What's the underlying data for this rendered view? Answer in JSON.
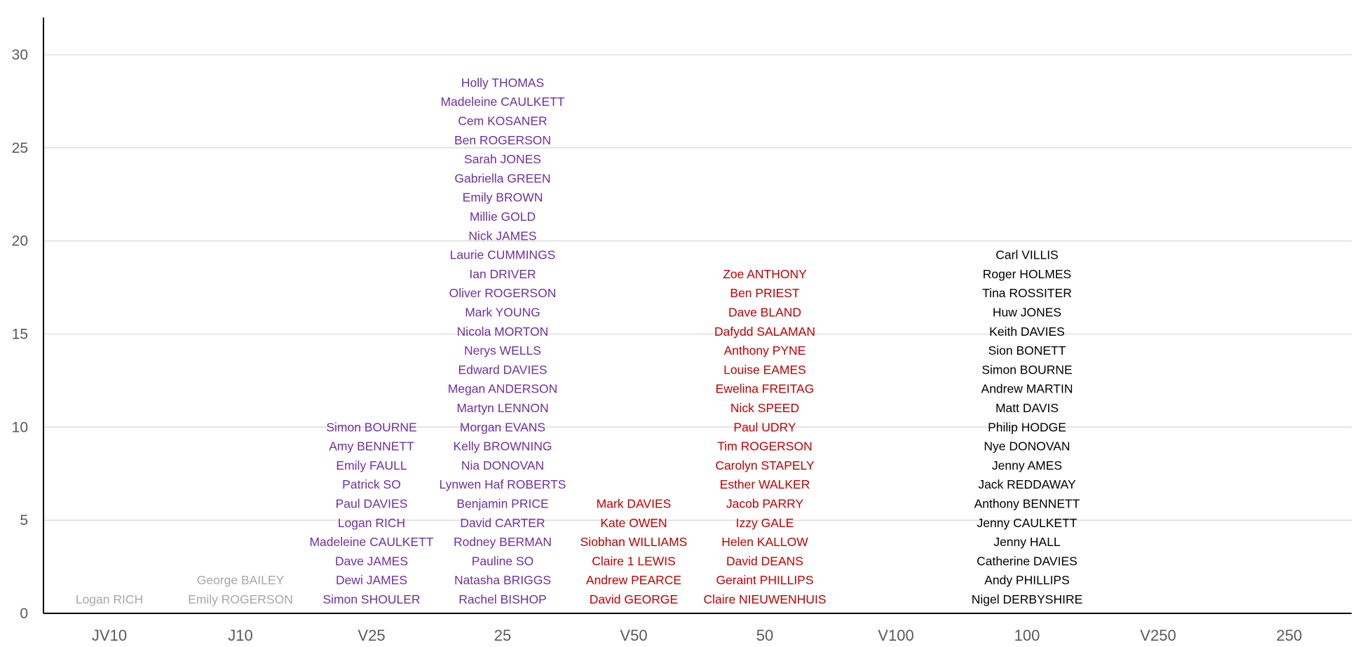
{
  "chart_data": {
    "type": "scatter",
    "title": "",
    "xlabel": "",
    "ylabel": "",
    "ylim": [
      0,
      32
    ],
    "yticks": [
      0,
      5,
      10,
      15,
      20,
      25,
      30
    ],
    "grid": true,
    "legend": "none",
    "categories": [
      "JV10",
      "J10",
      "V25",
      "25",
      "V50",
      "50",
      "V100",
      "100",
      "V250",
      "250"
    ],
    "colors": {
      "grey": "#a6a6a6",
      "purple": "#7030a0",
      "red": "#c00000",
      "black": "#000000",
      "axis": "#000000",
      "grid": "#d9d9d9",
      "tick": "#595959"
    },
    "series": [
      {
        "category": "JV10",
        "color": "grey",
        "names": [
          "Logan RICH"
        ]
      },
      {
        "category": "J10",
        "color": "grey",
        "names": [
          "Emily ROGERSON",
          "George BAILEY"
        ]
      },
      {
        "category": "V25",
        "color": "purple",
        "names": [
          "Simon SHOULER",
          "Dewi JAMES",
          "Dave JAMES",
          "Madeleine CAULKETT",
          "Logan RICH",
          "Paul DAVIES",
          "Patrick SO",
          "Emily FAULL",
          "Amy BENNETT",
          "Simon BOURNE"
        ]
      },
      {
        "category": "25",
        "color": "purple",
        "names": [
          "Rachel BISHOP",
          "Natasha BRIGGS",
          "Pauline SO",
          "Rodney BERMAN",
          "David CARTER",
          "Benjamin PRICE",
          "Lynwen Haf ROBERTS",
          "Nia DONOVAN",
          "Kelly BROWNING",
          "Morgan EVANS",
          "Martyn LENNON",
          "Megan ANDERSON",
          "Edward DAVIES",
          "Nerys WELLS",
          "Nicola MORTON",
          "Mark YOUNG",
          "Oliver ROGERSON",
          "Ian DRIVER",
          "Laurie CUMMINGS",
          "Nick JAMES",
          "Millie GOLD",
          "Emily BROWN",
          "Gabriella GREEN",
          "Sarah JONES",
          "Ben ROGERSON",
          "Cem KOSANER",
          "Madeleine CAULKETT",
          "Holly THOMAS"
        ]
      },
      {
        "category": "V50",
        "color": "red",
        "names": [
          "David GEORGE",
          "Andrew PEARCE",
          "Claire 1 LEWIS",
          "Siobhan WILLIAMS",
          "Kate OWEN",
          "Mark DAVIES"
        ]
      },
      {
        "category": "50",
        "color": "red",
        "names": [
          "Claire NIEUWENHUIS",
          "Geraint PHILLIPS",
          "David DEANS",
          "Helen KALLOW",
          "Izzy GALE",
          "Jacob PARRY",
          "Esther WALKER",
          "Carolyn STAPELY",
          "Tim ROGERSON",
          "Paul UDRY",
          "Nick SPEED",
          "Ewelina FREITAG",
          "Louise EAMES",
          "Anthony PYNE",
          "Dafydd SALAMAN",
          "Dave BLAND",
          "Ben PRIEST",
          "Zoe ANTHONY"
        ]
      },
      {
        "category": "V100",
        "color": "black",
        "names": []
      },
      {
        "category": "100",
        "color": "black",
        "names": [
          "Nigel DERBYSHIRE",
          "Andy PHILLIPS",
          "Catherine DAVIES",
          "Jenny HALL",
          "Jenny CAULKETT",
          "Anthony BENNETT",
          "Jack REDDAWAY",
          "Jenny AMES",
          "Nye DONOVAN",
          "Philip HODGE",
          "Matt DAVIS",
          "Andrew MARTIN",
          "Simon BOURNE",
          "Sion BONETT",
          "Keith DAVIES",
          "Huw JONES",
          "Tina ROSSITER",
          "Roger HOLMES",
          "Carl VILLIS"
        ]
      },
      {
        "category": "V250",
        "color": "black",
        "names": []
      },
      {
        "category": "250",
        "color": "black",
        "names": []
      }
    ]
  }
}
